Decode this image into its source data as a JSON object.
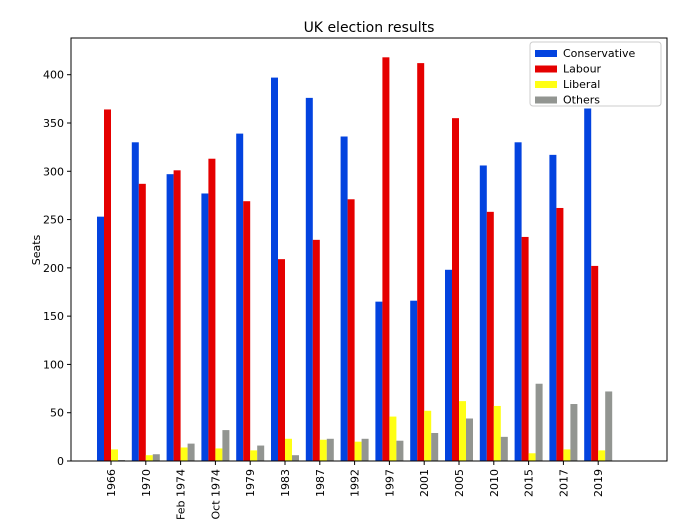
{
  "chart_data": {
    "type": "bar",
    "title": "UK election results",
    "xlabel": "",
    "ylabel": "Seats",
    "ylim": [
      0,
      438
    ],
    "yticks": [
      0,
      50,
      100,
      150,
      200,
      250,
      300,
      350,
      400
    ],
    "grid": false,
    "legend_position": "top-right",
    "categories": [
      "1966",
      "1970",
      "Feb 1974",
      "Oct 1974",
      "1979",
      "1983",
      "1987",
      "1992",
      "1997",
      "2001",
      "2005",
      "2010",
      "2015",
      "2017",
      "2019"
    ],
    "series": [
      {
        "name": "Conservative",
        "color": "#0343df",
        "values": [
          253,
          330,
          297,
          277,
          339,
          397,
          376,
          336,
          165,
          166,
          198,
          306,
          330,
          317,
          365
        ]
      },
      {
        "name": "Labour",
        "color": "#e50000",
        "values": [
          364,
          287,
          301,
          313,
          269,
          209,
          229,
          271,
          418,
          412,
          355,
          258,
          232,
          262,
          202
        ]
      },
      {
        "name": "Liberal",
        "color": "#ffff14",
        "values": [
          12,
          6,
          14,
          13,
          11,
          23,
          22,
          20,
          46,
          52,
          62,
          57,
          8,
          12,
          11
        ]
      },
      {
        "name": "Others",
        "color": "#929591",
        "values": [
          1,
          7,
          18,
          32,
          16,
          6,
          23,
          23,
          21,
          29,
          44,
          25,
          80,
          59,
          72
        ]
      }
    ]
  }
}
